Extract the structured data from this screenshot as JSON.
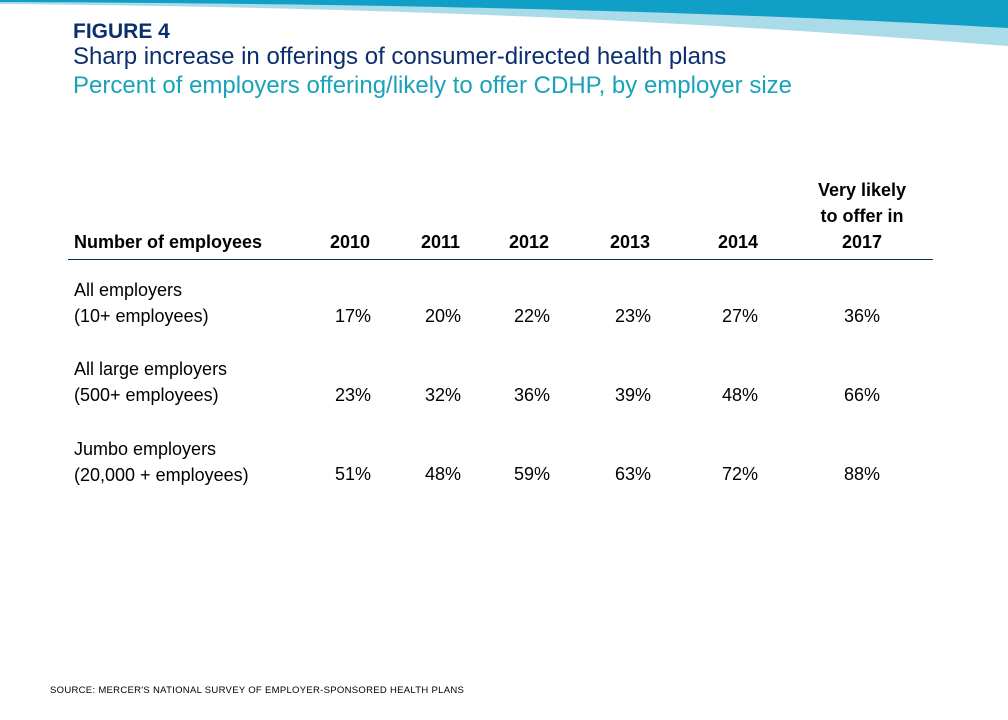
{
  "figure_label": "FIGURE 4",
  "title": "Sharp increase in offerings of consumer-directed health plans",
  "subtitle": "Percent of employers offering/likely to offer CDHP, by employer size",
  "source": "SOURCE:  MERCER'S  NATIONAL  SURVEY  OF  EMPLOYER-SPONSORED  HEALTH  PLANS",
  "colors": {
    "navy": "#0b2f6e",
    "teal": "#1aa3b8",
    "band_light": "#a9dbe8",
    "band_dark": "#0f9fc7"
  },
  "chart_data": {
    "type": "table",
    "row_header": "Number of employees",
    "columns": [
      "2010",
      "2011",
      "2012",
      "2013",
      "2014",
      "Very likely to offer in 2017"
    ],
    "column_header_lines": {
      "very_likely": [
        "Very likely",
        "to offer in",
        "2017"
      ]
    },
    "rows": [
      {
        "label_lines": [
          "All employers",
          "(10+ employees)"
        ],
        "values": [
          "17%",
          "20%",
          "22%",
          "23%",
          "27%",
          "36%"
        ]
      },
      {
        "label_lines": [
          "All large employers",
          "(500+ employees)"
        ],
        "values": [
          "23%",
          "32%",
          "36%",
          "39%",
          "48%",
          "66%"
        ]
      },
      {
        "label_lines": [
          "Jumbo employers",
          "(20,000 + employees)"
        ],
        "values": [
          "51%",
          "48%",
          "59%",
          "63%",
          "72%",
          "88%"
        ]
      }
    ]
  }
}
